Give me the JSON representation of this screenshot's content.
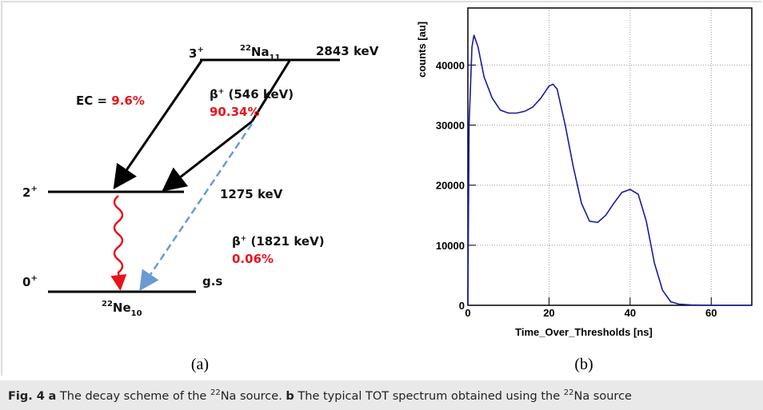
{
  "diagram": {
    "parent": {
      "mass": "22",
      "symbol": "Na",
      "atomic": "11"
    },
    "daughter": {
      "mass": "22",
      "symbol": "Ne",
      "atomic": "10"
    },
    "levels": [
      {
        "spin": "3",
        "parity": "+",
        "energy": "2843 keV"
      },
      {
        "spin": "2",
        "parity": "+",
        "energy": "1275 keV"
      },
      {
        "spin": "0",
        "parity": "+",
        "energy": "g.s"
      }
    ],
    "ec": {
      "label": "EC = ",
      "percent": "9.6%"
    },
    "beta1": {
      "beta": "β",
      "sign": "+",
      "energy": " (546 keV)",
      "percent": "90.34%"
    },
    "beta2": {
      "beta": "β",
      "sign": "+",
      "energy": " (1821 keV)",
      "percent": "0.06%"
    },
    "panel_label": "(a)"
  },
  "chart_data": {
    "type": "line",
    "panel_label": "(b)",
    "x_label": "Time_Over_Thresholds [ns]",
    "y_label": "counts [au]",
    "color": "#1a1aa0",
    "x": [
      0,
      0.3,
      1,
      1.5,
      2.5,
      4,
      6,
      8,
      10,
      12,
      14,
      16,
      18,
      20,
      21,
      22,
      24,
      26,
      28,
      30,
      32,
      34,
      36,
      38,
      40,
      42,
      44,
      46,
      48,
      50,
      52,
      55,
      60,
      70
    ],
    "values": [
      0,
      30000,
      43000,
      45000,
      43000,
      38000,
      34500,
      32500,
      32000,
      32000,
      32300,
      33000,
      34500,
      36500,
      36800,
      36000,
      30000,
      23000,
      17000,
      14000,
      13800,
      15000,
      17000,
      18800,
      19300,
      18500,
      14000,
      7000,
      2500,
      600,
      200,
      50,
      0,
      0
    ],
    "xlim": [
      0,
      70
    ],
    "ylim": [
      0,
      49500
    ],
    "xticks": [
      0,
      20,
      40,
      60
    ],
    "yticks": [
      0,
      10000,
      20000,
      30000,
      40000
    ],
    "grid": true
  },
  "caption": {
    "fig": "Fig. 4",
    "a": "a",
    "a_text": " The decay scheme of the ",
    "a_mass": "22",
    "a_tail": "Na source. ",
    "b": "b",
    "b_text": " The typical TOT spectrum obtained using the ",
    "b_mass": "22",
    "b_tail": "Na source"
  }
}
